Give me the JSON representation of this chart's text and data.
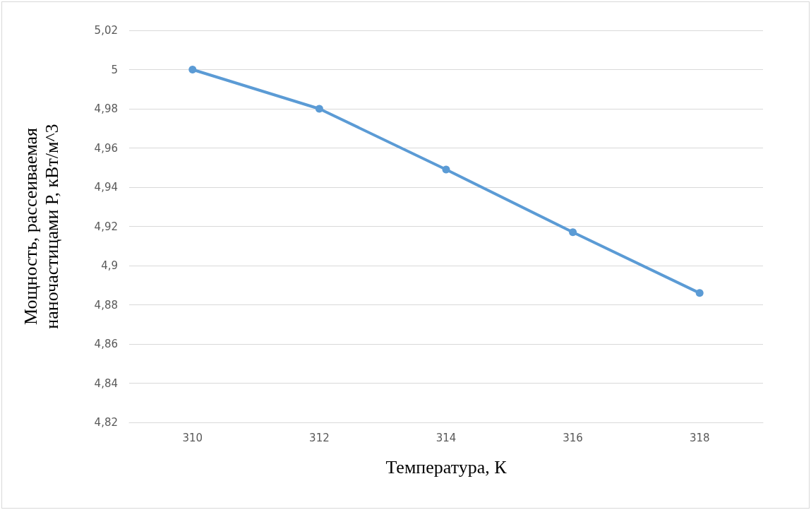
{
  "chart_data": {
    "type": "line",
    "xlabel": "Температура, К",
    "ylabel": "Мощность, рассеиваемая\nнаночастицами P, кВт/м^3",
    "categories": [
      "310",
      "312",
      "314",
      "316",
      "318"
    ],
    "series": [
      {
        "color": "#5b9bd5",
        "values": [
          5.0,
          4.98,
          4.949,
          4.917,
          4.886
        ]
      }
    ],
    "ylim": [
      4.82,
      5.02
    ],
    "yticks": [
      {
        "value": 4.82,
        "label": "4,82"
      },
      {
        "value": 4.84,
        "label": "4,84"
      },
      {
        "value": 4.86,
        "label": "4,86"
      },
      {
        "value": 4.88,
        "label": "4,88"
      },
      {
        "value": 4.9,
        "label": "4,9"
      },
      {
        "value": 4.92,
        "label": "4,92"
      },
      {
        "value": 4.94,
        "label": "4,94"
      },
      {
        "value": 4.96,
        "label": "4,96"
      },
      {
        "value": 4.98,
        "label": "4,98"
      },
      {
        "value": 5,
        "label": "5"
      },
      {
        "value": 5.02,
        "label": "5,02"
      }
    ],
    "grid": "y",
    "marker": "circle",
    "line_style": "solid"
  }
}
